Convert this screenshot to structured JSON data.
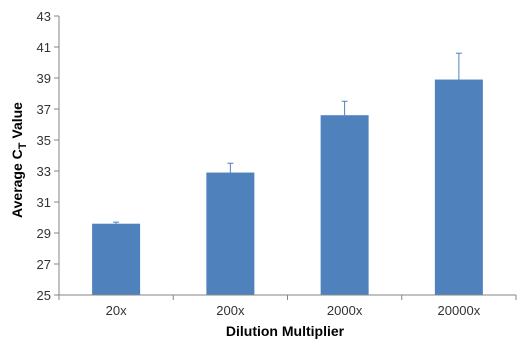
{
  "chart_data": {
    "type": "bar",
    "title": "",
    "xlabel": "Dilution Multiplier",
    "ylabel": {
      "main": "Average C",
      "subscript": "T",
      "suffix": " Value"
    },
    "categories": [
      "20x",
      "200x",
      "2000x",
      "20000x"
    ],
    "series": [
      {
        "values": [
          29.6,
          32.9,
          36.6,
          38.9
        ],
        "error_plus": [
          0.1,
          0.6,
          0.9,
          1.7
        ]
      }
    ],
    "ylim": [
      25,
      43
    ],
    "yticks": [
      25,
      27,
      29,
      31,
      33,
      35,
      37,
      39,
      41,
      43
    ],
    "grid": false,
    "legend": "none",
    "colors": {
      "bar": "#4f81bd",
      "axis": "#868686"
    }
  }
}
